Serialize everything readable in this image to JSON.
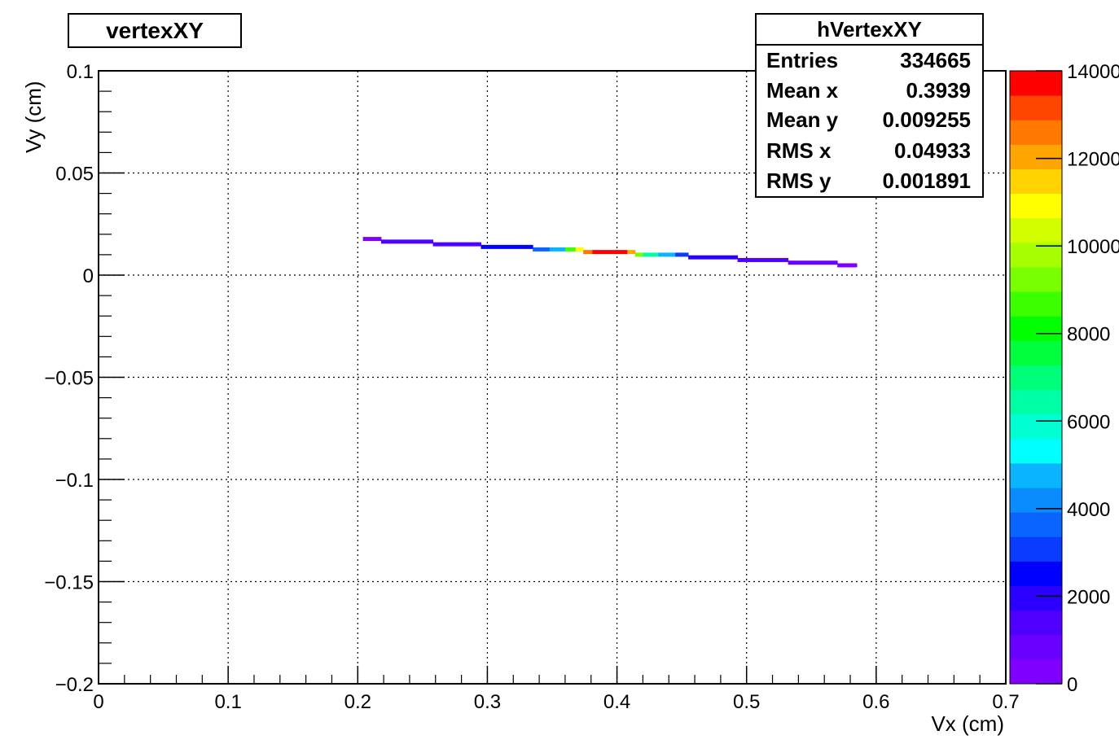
{
  "title": "vertexXY",
  "stats": {
    "name": "hVertexXY",
    "rows": [
      {
        "label": "Entries",
        "value": "334665"
      },
      {
        "label": "Mean x",
        "value": "0.3939"
      },
      {
        "label": "Mean y",
        "value": "0.009255"
      },
      {
        "label": "RMS x",
        "value": "0.04933"
      },
      {
        "label": "RMS y",
        "value": "0.001891"
      }
    ]
  },
  "chart_data": {
    "type": "heatmap",
    "title": "vertexXY",
    "xlabel": "Vx (cm)",
    "ylabel": "Vy (cm)",
    "xlim": [
      0,
      0.7
    ],
    "ylim": [
      -0.2,
      0.1
    ],
    "grid": true,
    "x_ticks": [
      "0",
      "0.1",
      "0.2",
      "0.3",
      "0.4",
      "0.5",
      "0.6",
      "0.7"
    ],
    "y_ticks": [
      "−0.2",
      "−0.15",
      "−0.1",
      "−0.05",
      "0",
      "0.05",
      "0.1"
    ],
    "z_range": [
      0,
      14000
    ],
    "z_ticks": [
      "0",
      "2000",
      "4000",
      "6000",
      "8000",
      "10000",
      "12000",
      "14000"
    ],
    "palette": [
      "#7f00ff",
      "#6a00ff",
      "#5000ff",
      "#2c00ff",
      "#0000ff",
      "#0a3cff",
      "#0a64ff",
      "#0a8cff",
      "#0ab4ff",
      "#00ffff",
      "#00ffd2",
      "#00ffa5",
      "#00ff78",
      "#00ff3c",
      "#00ff00",
      "#3cff00",
      "#78ff00",
      "#a5ff00",
      "#d2ff00",
      "#ffff00",
      "#ffd200",
      "#ffa500",
      "#ff7800",
      "#ff4600",
      "#ff0000"
    ],
    "cells": [
      {
        "x0": 0.204,
        "x1": 0.218,
        "y": 0.0177,
        "z": 400
      },
      {
        "x0": 0.218,
        "x1": 0.258,
        "y": 0.0164,
        "z": 1200
      },
      {
        "x0": 0.258,
        "x1": 0.295,
        "y": 0.0151,
        "z": 1500
      },
      {
        "x0": 0.295,
        "x1": 0.335,
        "y": 0.0138,
        "z": 2500
      },
      {
        "x0": 0.335,
        "x1": 0.348,
        "y": 0.0126,
        "z": 3500
      },
      {
        "x0": 0.348,
        "x1": 0.36,
        "y": 0.0126,
        "z": 5000
      },
      {
        "x0": 0.36,
        "x1": 0.368,
        "y": 0.0126,
        "z": 8500
      },
      {
        "x0": 0.368,
        "x1": 0.374,
        "y": 0.0126,
        "z": 11000
      },
      {
        "x0": 0.374,
        "x1": 0.381,
        "y": 0.0113,
        "z": 12500
      },
      {
        "x0": 0.381,
        "x1": 0.408,
        "y": 0.0113,
        "z": 14000
      },
      {
        "x0": 0.408,
        "x1": 0.414,
        "y": 0.0113,
        "z": 12000
      },
      {
        "x0": 0.414,
        "x1": 0.42,
        "y": 0.01,
        "z": 9000
      },
      {
        "x0": 0.42,
        "x1": 0.432,
        "y": 0.01,
        "z": 6500
      },
      {
        "x0": 0.432,
        "x1": 0.445,
        "y": 0.01,
        "z": 4500
      },
      {
        "x0": 0.445,
        "x1": 0.455,
        "y": 0.01,
        "z": 3000
      },
      {
        "x0": 0.455,
        "x1": 0.493,
        "y": 0.0087,
        "z": 2200
      },
      {
        "x0": 0.493,
        "x1": 0.532,
        "y": 0.0074,
        "z": 1500
      },
      {
        "x0": 0.532,
        "x1": 0.57,
        "y": 0.0061,
        "z": 800
      },
      {
        "x0": 0.57,
        "x1": 0.585,
        "y": 0.0048,
        "z": 300
      }
    ]
  }
}
